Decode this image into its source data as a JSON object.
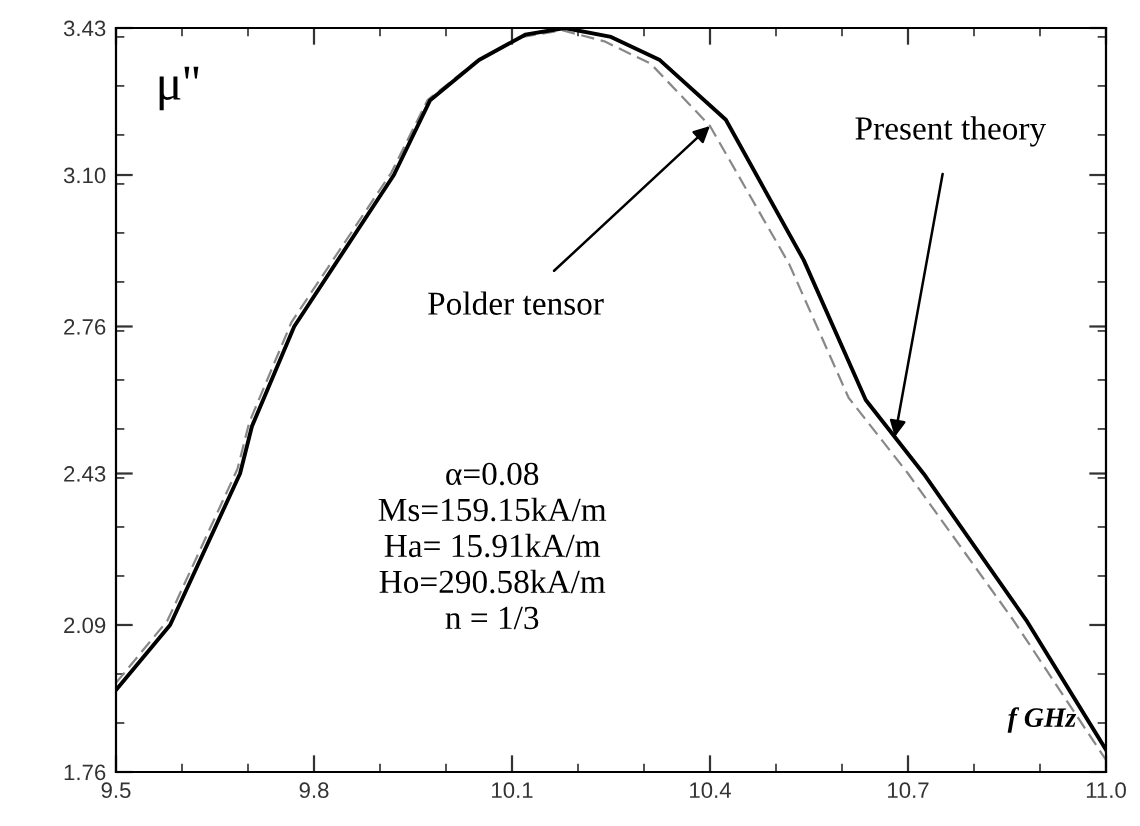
{
  "chart_data": {
    "type": "line",
    "xlabel": "f GHz",
    "ylabel": "μ''",
    "xlim": [
      9.5,
      11.0
    ],
    "xticks": [
      9.5,
      9.8,
      10.1,
      10.4,
      10.7,
      {
        "value": 11,
        "label": "11.0"
      }
    ],
    "ylim": [
      1.76,
      3.43
    ],
    "yticks": [
      1.76,
      2.09,
      2.43,
      2.76,
      {
        "value": 3.1,
        "label": "3.10"
      },
      3.43
    ],
    "grid": false,
    "legend": false,
    "marker": "none",
    "series": [
      {
        "color": "#000000",
        "line_style": "solid",
        "x": [
          9.5,
          9.582,
          9.688,
          9.706,
          9.77,
          9.921,
          9.976,
          10.05,
          10.12,
          10.18,
          10.25,
          10.324,
          10.424,
          10.542,
          10.636,
          10.724,
          10.879,
          11.0
        ],
        "values": [
          1.944,
          2.09,
          2.43,
          2.536,
          2.76,
          3.1,
          3.268,
          3.358,
          3.415,
          3.43,
          3.41,
          3.358,
          3.224,
          2.909,
          2.595,
          2.429,
          2.101,
          1.81
        ]
      },
      {
        "color": "#888888",
        "line_style": "dashed",
        "x": [
          9.5,
          9.578,
          9.684,
          9.702,
          9.766,
          9.917,
          9.972,
          10.046,
          10.116,
          10.176,
          10.24,
          10.31,
          10.4,
          10.52,
          10.61,
          10.7,
          10.86,
          11.0
        ],
        "values": [
          1.96,
          2.1,
          2.44,
          2.545,
          2.77,
          3.105,
          3.268,
          3.355,
          3.41,
          3.425,
          3.4,
          3.35,
          3.21,
          2.9,
          2.6,
          2.43,
          2.1,
          1.787
        ]
      }
    ],
    "annotations": [
      {
        "text": "Polder tensor",
        "x": 10.4,
        "y": 3.21
      },
      {
        "text": "Present theory",
        "x": 10.68,
        "y": 2.512
      },
      "α=0.08\nMs=159.15kA/m\nHa= 15.91kA/m\nHo=290.58kA/m\nn = 1/3"
    ]
  }
}
